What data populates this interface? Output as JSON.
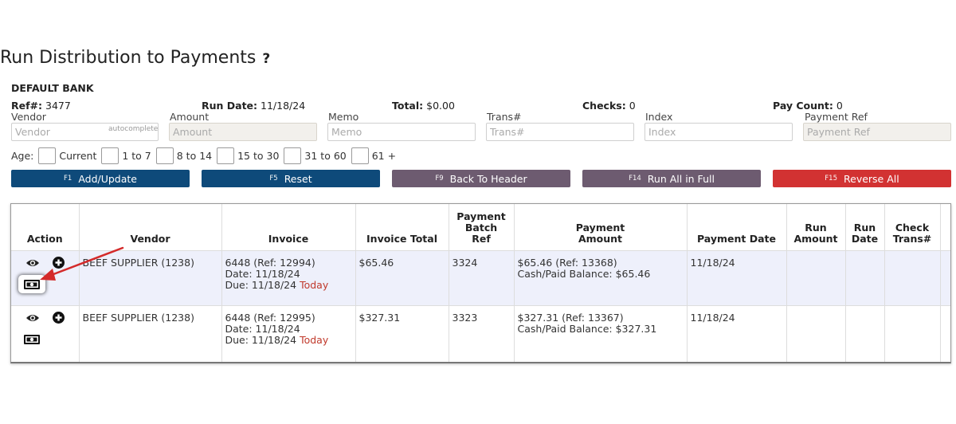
{
  "page": {
    "title": "Run Distribution to Payments",
    "help_label": "?"
  },
  "header": {
    "bank_name": "DEFAULT BANK",
    "ref_label": "Ref#:",
    "ref_value": "3477",
    "run_date_label": "Run Date:",
    "run_date_value": "11/18/24",
    "total_label": "Total:",
    "total_value": "$0.00",
    "checks_label": "Checks:",
    "checks_value": "0",
    "pay_count_label": "Pay Count:",
    "pay_count_value": "0"
  },
  "filters": {
    "vendor": {
      "label": "Vendor",
      "placeholder": "Vendor",
      "hint": "autocomplete"
    },
    "amount": {
      "label": "Amount",
      "placeholder": "Amount"
    },
    "memo": {
      "label": "Memo",
      "placeholder": "Memo"
    },
    "trans": {
      "label": "Trans#",
      "placeholder": "Trans#"
    },
    "index": {
      "label": "Index",
      "placeholder": "Index"
    },
    "payment_ref": {
      "label": "Payment Ref",
      "placeholder": "Payment Ref"
    }
  },
  "age": {
    "label": "Age:",
    "options": [
      "Current",
      "1 to 7",
      "8 to 14",
      "15 to 30",
      "31 to 60",
      "61 +"
    ]
  },
  "buttons": {
    "add_update": {
      "key": "F1",
      "label": "Add/Update"
    },
    "reset": {
      "key": "F5",
      "label": "Reset"
    },
    "back_to_header": {
      "key": "F9",
      "label": "Back To Header"
    },
    "run_all_in_full": {
      "key": "F14",
      "label": "Run All in Full"
    },
    "reverse_all": {
      "key": "F15",
      "label": "Reverse All"
    }
  },
  "colors": {
    "primary_button": "#0e4a7a",
    "secondary_button": "#6d5b70",
    "danger_button": "#d23232",
    "selected_row": "#eef0fb",
    "today_text": "#c0392b",
    "annotation_arrow": "#d42a2a"
  },
  "table": {
    "columns": {
      "action": "Action",
      "vendor": "Vendor",
      "invoice": "Invoice",
      "invoice_total": "Invoice Total",
      "payment_batch_ref": [
        "Payment",
        "Batch",
        "Ref"
      ],
      "payment_amount": [
        "Payment",
        "Amount"
      ],
      "payment_date": "Payment Date",
      "run_amount": [
        "Run",
        "Amount"
      ],
      "run_date": [
        "Run",
        "Date"
      ],
      "check_trans": [
        "Check",
        "Trans#"
      ]
    },
    "rows": [
      {
        "vendor": "BEEF SUPPLIER (1238)",
        "invoice_line": "6448 (Ref: 12994)",
        "invoice_date": "Date: 11/18/24",
        "invoice_due": "Due: 11/18/24",
        "invoice_due_flag": "Today",
        "invoice_total": "$65.46",
        "payment_batch_ref": "3324",
        "payment_amount": "$65.46 (Ref: 13368)",
        "payment_balance": "Cash/Paid Balance: $65.46",
        "payment_date": "11/18/24",
        "run_amount": "",
        "run_date": "",
        "check_trans": ""
      },
      {
        "vendor": "BEEF SUPPLIER (1238)",
        "invoice_line": "6448 (Ref: 12995)",
        "invoice_date": "Date: 11/18/24",
        "invoice_due": "Due: 11/18/24",
        "invoice_due_flag": "Today",
        "invoice_total": "$327.31",
        "payment_batch_ref": "3323",
        "payment_amount": "$327.31 (Ref: 13367)",
        "payment_balance": "Cash/Paid Balance: $327.31",
        "payment_date": "11/18/24",
        "run_amount": "",
        "run_date": "",
        "check_trans": ""
      }
    ]
  },
  "icons": {
    "view": "eye-icon",
    "add": "plus-circle-icon",
    "pay": "cash-icon"
  }
}
